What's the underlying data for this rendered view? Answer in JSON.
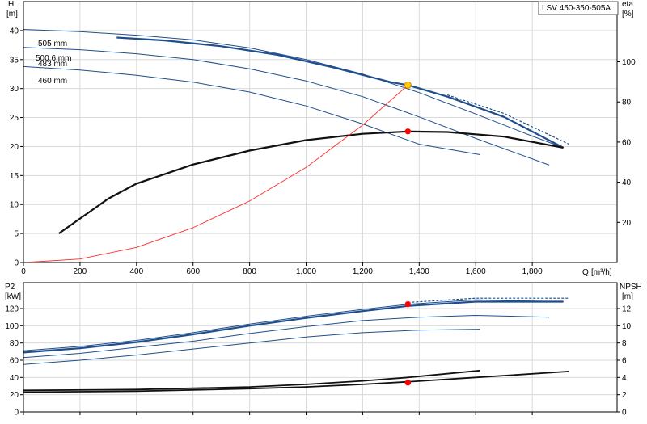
{
  "title_box": "LSV 450-350-505A",
  "colors": {
    "curve": "#1f4e8c",
    "highlight": "#1f4e8c",
    "efficiency": "#111111",
    "system": "#ff2a2a",
    "point": "#ff0000",
    "op_point": "#ffcc00"
  },
  "chart_data": [
    {
      "type": "line",
      "name": "head",
      "ylabel": "H",
      "yunit": "[m]",
      "y2label": "eta",
      "y2unit": "[%]",
      "xlabel": "Q",
      "xunit": "[m³/h]",
      "xlim": [
        0,
        2100
      ],
      "ylim": [
        0,
        45
      ],
      "y2lim": [
        0,
        130
      ],
      "xticks": [
        "0",
        "200",
        "400",
        "600",
        "800",
        "1,000",
        "1,200",
        "1,400",
        "1,600",
        "1,800"
      ],
      "yticks": [
        "0",
        "5",
        "10",
        "15",
        "20",
        "25",
        "30",
        "35",
        "40"
      ],
      "y2ticks": [
        "20",
        "40",
        "60",
        "80",
        "100"
      ],
      "grid": true,
      "series": [
        {
          "name": "505 mm",
          "x": [
            0,
            200,
            400,
            600,
            800,
            1000,
            1200,
            1400,
            1600,
            1800,
            1910
          ],
          "y": [
            40.2,
            39.8,
            39.2,
            38.4,
            37.0,
            35.0,
            32.5,
            29.3,
            25.6,
            21.8,
            19.8
          ]
        },
        {
          "name": "500.6 mm",
          "highlight": true,
          "x": [
            330,
            500,
            700,
            900,
            1100,
            1300,
            1360,
            1500,
            1700,
            1910
          ],
          "y": [
            38.8,
            38.3,
            37.3,
            35.8,
            33.6,
            31.1,
            30.6,
            28.6,
            25.1,
            19.8
          ]
        },
        {
          "name": "483 mm",
          "x": [
            0,
            200,
            400,
            600,
            800,
            1000,
            1200,
            1400,
            1600,
            1860
          ],
          "y": [
            37.1,
            36.7,
            36.0,
            35.0,
            33.4,
            31.3,
            28.6,
            25.1,
            21.4,
            16.8
          ]
        },
        {
          "name": "460 mm",
          "x": [
            0,
            200,
            400,
            600,
            800,
            1000,
            1200,
            1400,
            1615
          ],
          "y": [
            33.8,
            33.2,
            32.3,
            31.1,
            29.4,
            27.0,
            23.9,
            20.4,
            18.6
          ]
        },
        {
          "name": "",
          "dashed": true,
          "x": [
            1500,
            1700,
            1930
          ],
          "y": [
            28.9,
            25.7,
            20.4
          ]
        },
        {
          "name": "",
          "type": "efficiency",
          "x": [
            125,
            300,
            400,
            600,
            800,
            1000,
            1200,
            1360,
            1500,
            1700,
            1910
          ],
          "y": [
            5.0,
            11.0,
            13.6,
            16.9,
            19.3,
            21.1,
            22.2,
            22.6,
            22.5,
            21.7,
            19.8
          ]
        },
        {
          "name": "",
          "type": "system",
          "x": [
            0,
            200,
            400,
            600,
            800,
            1000,
            1200,
            1360
          ],
          "y": [
            0,
            0.6,
            2.6,
            6.0,
            10.6,
            16.4,
            23.7,
            30.6
          ]
        }
      ],
      "points": [
        {
          "x": 1360,
          "y": 30.6,
          "kind": "op_point"
        },
        {
          "x": 1360,
          "y": 22.6,
          "kind": "point"
        }
      ]
    },
    {
      "type": "line",
      "name": "power",
      "ylabel": "P2",
      "yunit": "[kW]",
      "y2label": "NPSH",
      "y2unit": "[m]",
      "xlim": [
        0,
        2100
      ],
      "ylim": [
        0,
        150
      ],
      "y2lim": [
        0,
        15
      ],
      "yticks": [
        "0",
        "20",
        "40",
        "60",
        "80",
        "100",
        "120"
      ],
      "y2ticks": [
        "0",
        "2",
        "4",
        "6",
        "8",
        "10",
        "12"
      ],
      "grid": true,
      "series": [
        {
          "name": "",
          "x": [
            0,
            200,
            400,
            600,
            800,
            1000,
            1200,
            1360,
            1600,
            1910
          ],
          "y": [
            71,
            76,
            83,
            92,
            102,
            111,
            119,
            125,
            130,
            128
          ]
        },
        {
          "name": "",
          "highlight": true,
          "x": [
            0,
            200,
            400,
            600,
            800,
            1000,
            1200,
            1360,
            1600,
            1910
          ],
          "y": [
            69,
            74,
            81,
            90,
            100,
            109,
            117,
            123,
            128,
            128
          ]
        },
        {
          "name": "",
          "x": [
            0,
            200,
            400,
            600,
            800,
            1000,
            1200,
            1400,
            1600,
            1860
          ],
          "y": [
            63,
            68,
            75,
            82,
            91,
            99,
            106,
            110,
            112,
            110
          ]
        },
        {
          "name": "",
          "x": [
            0,
            200,
            400,
            600,
            800,
            1000,
            1200,
            1400,
            1615
          ],
          "y": [
            55,
            60,
            66,
            73,
            80,
            87,
            92,
            95,
            96
          ]
        },
        {
          "name": "",
          "dashed": true,
          "x": [
            1360,
            1600,
            1930
          ],
          "y": [
            127,
            132,
            132
          ]
        },
        {
          "name": "",
          "type": "npsh",
          "x": [
            0,
            400,
            800,
            1000,
            1200,
            1360,
            1615
          ],
          "y": [
            2.5,
            2.6,
            2.9,
            3.2,
            3.6,
            4.0,
            4.8
          ]
        },
        {
          "name": "",
          "type": "npsh",
          "x": [
            0,
            400,
            800,
            1000,
            1200,
            1360,
            1600,
            1930
          ],
          "y": [
            2.3,
            2.4,
            2.7,
            2.9,
            3.2,
            3.5,
            4.0,
            4.7
          ]
        }
      ],
      "points": [
        {
          "x": 1360,
          "y": 125,
          "kind": "point"
        },
        {
          "x": 1360,
          "y": 34,
          "kind": "point"
        }
      ]
    }
  ]
}
